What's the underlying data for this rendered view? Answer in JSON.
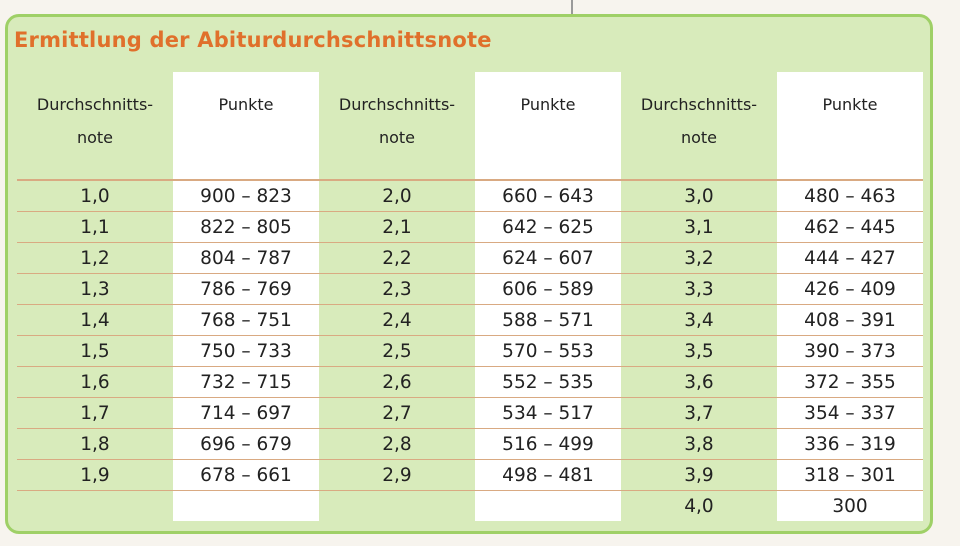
{
  "title": "Ermittlung der Abiturdurchschnittsnote",
  "headers": {
    "note_line1": "Durchschnitts-",
    "note_line2": "note",
    "points": "Punkte"
  },
  "rows": [
    [
      "1,0",
      "900 – 823",
      "2,0",
      "660 – 643",
      "3,0",
      "480 – 463"
    ],
    [
      "1,1",
      "822 – 805",
      "2,1",
      "642 – 625",
      "3,1",
      "462 – 445"
    ],
    [
      "1,2",
      "804 – 787",
      "2,2",
      "624 – 607",
      "3,2",
      "444 – 427"
    ],
    [
      "1,3",
      "786 – 769",
      "2,3",
      "606 – 589",
      "3,3",
      "426 – 409"
    ],
    [
      "1,4",
      "768 – 751",
      "2,4",
      "588 – 571",
      "3,4",
      "408 – 391"
    ],
    [
      "1,5",
      "750 – 733",
      "2,5",
      "570 – 553",
      "3,5",
      "390 – 373"
    ],
    [
      "1,6",
      "732 – 715",
      "2,6",
      "552 – 535",
      "3,6",
      "372 – 355"
    ],
    [
      "1,7",
      "714 – 697",
      "2,7",
      "534 – 517",
      "3,7",
      "354 – 337"
    ],
    [
      "1,8",
      "696 – 679",
      "2,8",
      "516 – 499",
      "3,8",
      "336 – 319"
    ],
    [
      "1,9",
      "678 – 661",
      "2,9",
      "498 – 481",
      "3,9",
      "318 – 301"
    ],
    [
      "",
      "",
      "",
      "",
      "4,0",
      "300"
    ]
  ],
  "colors": {
    "title": "#e0702b",
    "box_background": "#d8ebbb",
    "box_border": "#9fd067",
    "row_rule": "#d9aa82",
    "points_column": "#ffffff"
  }
}
